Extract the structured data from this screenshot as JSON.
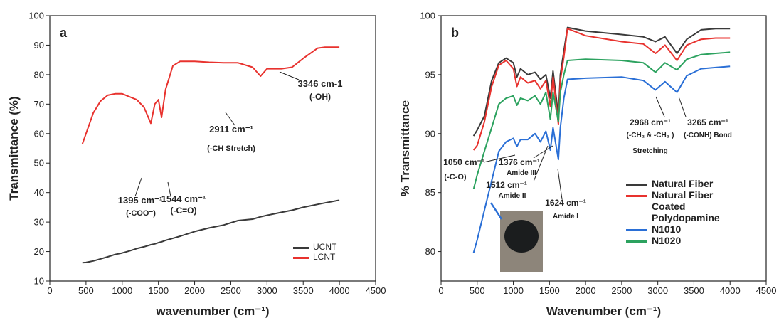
{
  "chart_data": [
    {
      "type": "line",
      "panel_label": "a",
      "xlabel": "wavenumber (cm⁻¹)",
      "ylabel": "Transmittance (%)",
      "x": [
        450,
        500,
        600,
        700,
        800,
        900,
        1000,
        1100,
        1200,
        1300,
        1395,
        1450,
        1500,
        1544,
        1600,
        1700,
        1800,
        2000,
        2200,
        2400,
        2600,
        2800,
        2911,
        3000,
        3200,
        3346,
        3500,
        3700,
        3800,
        4000
      ],
      "series": [
        {
          "name": "UCNT",
          "color": "#3a3a3a",
          "values": [
            16.2,
            16.3,
            16.8,
            17.5,
            18.2,
            19,
            19.5,
            20.2,
            21,
            21.6,
            22.3,
            22.6,
            23,
            23.3,
            23.8,
            24.5,
            25.2,
            26.8,
            28,
            29,
            30.5,
            31,
            31.8,
            32.3,
            33.3,
            34,
            35,
            36,
            36.5,
            37.4
          ]
        },
        {
          "name": "LCNT",
          "color": "#e8322e",
          "values": [
            56.5,
            60,
            67,
            71,
            73,
            73.5,
            73.5,
            72.5,
            71.5,
            69,
            63.5,
            70,
            71.5,
            65.5,
            75,
            83,
            84.5,
            84.5,
            84.2,
            84,
            84,
            82.5,
            79.5,
            82,
            82,
            82.5,
            85.5,
            89,
            89.3,
            89.3
          ]
        }
      ],
      "xlim": [
        0,
        4500
      ],
      "xticks": [
        0,
        500,
        1000,
        1500,
        2000,
        2500,
        3000,
        3500,
        4000,
        4500
      ],
      "ylim": [
        10,
        100
      ],
      "yticks": [
        10,
        20,
        30,
        40,
        50,
        60,
        70,
        80,
        90,
        100
      ],
      "legend": "lower right",
      "annotations": [
        "1395 cm⁻¹",
        "(-COO⁻)",
        "1544 cm⁻¹",
        "(-C=O)",
        "2911 cm⁻¹",
        "(-CH Stretch)",
        "3346 cm-1",
        "(-OH)"
      ]
    },
    {
      "type": "line",
      "panel_label": "b",
      "xlabel": "Wavenumber (cm⁻¹)",
      "ylabel": "% Transmittance",
      "x": [
        450,
        500,
        600,
        700,
        800,
        900,
        1000,
        1050,
        1100,
        1200,
        1300,
        1376,
        1450,
        1512,
        1550,
        1624,
        1650,
        1700,
        1750,
        2000,
        2500,
        2800,
        2968,
        3100,
        3265,
        3400,
        3600,
        3800,
        4000
      ],
      "series": [
        {
          "name": "Natural Fiber",
          "color": "#3a3a3a",
          "values": [
            89.8,
            90.3,
            91.5,
            94.5,
            96,
            96.4,
            96,
            94.8,
            95.5,
            95,
            95.2,
            94.6,
            95,
            93,
            95.3,
            91.5,
            95,
            97,
            99,
            98.7,
            98.4,
            98.2,
            97.8,
            98.2,
            96.8,
            98,
            98.8,
            98.9,
            98.9
          ]
        },
        {
          "name": "Natural Fiber Coated Polydopamine",
          "color": "#e8322e",
          "values": [
            88.6,
            89,
            91,
            94,
            95.8,
            96.2,
            95.5,
            94,
            94.8,
            94.3,
            94.5,
            93.8,
            94.5,
            92.3,
            94.8,
            90.8,
            94.5,
            96.5,
            98.9,
            98.3,
            97.8,
            97.6,
            96.8,
            97.5,
            96.2,
            97.5,
            98,
            98.1,
            98.1
          ]
        },
        {
          "name": "N1010",
          "color": "#2a6fd6",
          "values": [
            79.9,
            81,
            83.5,
            86,
            88.5,
            89.3,
            89.6,
            88.9,
            89.5,
            89.5,
            90,
            89.3,
            90.2,
            88.6,
            90.5,
            87.8,
            90.5,
            93,
            94.6,
            94.7,
            94.8,
            94.5,
            93.7,
            94.4,
            93.5,
            94.9,
            95.5,
            95.6,
            95.7
          ]
        },
        {
          "name": "N1020",
          "color": "#2ca25f",
          "values": [
            85.3,
            86.5,
            88.5,
            90.5,
            92.5,
            93,
            93.2,
            92.4,
            93,
            92.8,
            93.2,
            92.5,
            93.5,
            91.2,
            93.5,
            91,
            93.5,
            95,
            96.2,
            96.3,
            96.2,
            96,
            95.2,
            96,
            95.4,
            96.3,
            96.7,
            96.8,
            96.9
          ]
        }
      ],
      "xlim": [
        0,
        4500
      ],
      "xticks": [
        0,
        500,
        1000,
        1500,
        2000,
        2500,
        3000,
        3500,
        4000,
        4500
      ],
      "ylim": [
        77.5,
        100
      ],
      "yticks": [
        80,
        85,
        90,
        95,
        100
      ],
      "legend": "lower right",
      "annotations": [
        "1050 cm⁻¹",
        "(-C-O)",
        "1376 cm⁻¹",
        "Amide III",
        "1512 cm⁻¹",
        "Amide II",
        "1624 cm⁻¹",
        "Amide I",
        "2968 cm⁻¹",
        "(-CH₂ & -CH₃ )",
        "Stretching",
        "3265 cm⁻¹",
        "(-CONH) Bond"
      ]
    }
  ]
}
